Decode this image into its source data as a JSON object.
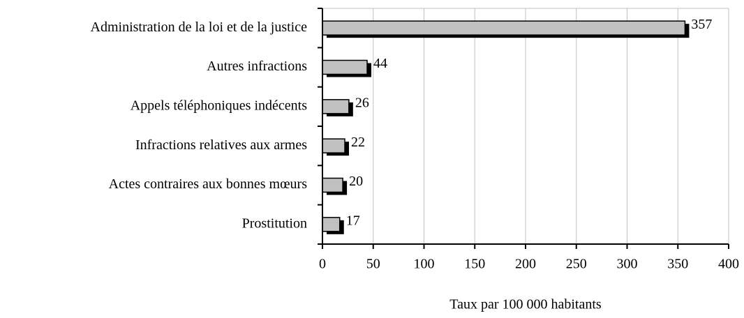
{
  "chart_data": {
    "type": "bar",
    "orientation": "horizontal",
    "categories": [
      "Administration de la loi et de la justice",
      "Autres infractions",
      "Appels téléphoniques indécents",
      "Infractions relatives aux armes",
      "Actes contraires aux bonnes mœurs",
      "Prostitution"
    ],
    "values": [
      357,
      44,
      26,
      22,
      20,
      17
    ],
    "color": "#c0c0c0",
    "xlabel": "Taux par 100 000 habitants",
    "xlim": [
      0,
      400
    ],
    "xticks": [
      0,
      50,
      100,
      150,
      200,
      250,
      300,
      350,
      400
    ],
    "grid": true
  }
}
